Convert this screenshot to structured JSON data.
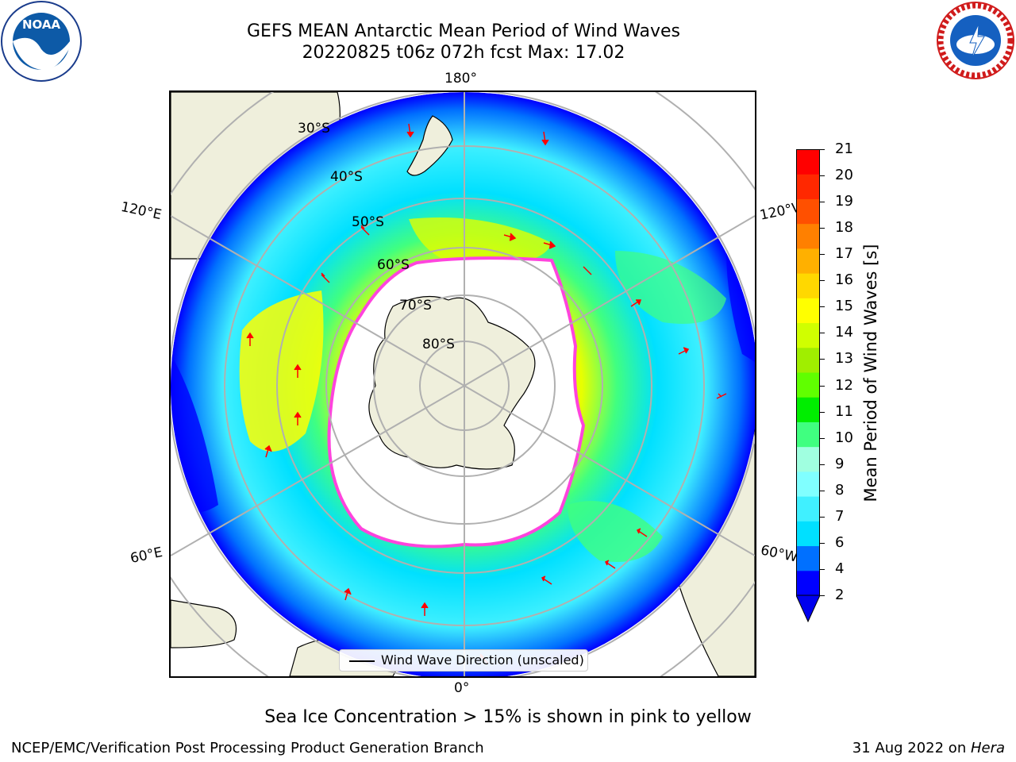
{
  "header": {
    "title": "GEFS MEAN Antarctic Mean Period of Wind Waves",
    "subtitle": "20220825 t06z 072h fcst   Max: 17.02"
  },
  "map": {
    "projection": "south-polar-stereographic",
    "longitude_labels": [
      "180°",
      "120°E",
      "120°W",
      "60°E",
      "60°W",
      "0°"
    ],
    "latitude_labels": [
      "30°S",
      "40°S",
      "50°S",
      "60°S",
      "70°S",
      "80°S"
    ],
    "legend_label": "Wind Wave Direction (unscaled)"
  },
  "colorbar": {
    "label": "Mean Period of Wind Waves [s]",
    "ticks": [
      "2",
      "4",
      "6",
      "7",
      "8",
      "9",
      "10",
      "11",
      "12",
      "13",
      "14",
      "15",
      "16",
      "17",
      "18",
      "19",
      "20",
      "21"
    ],
    "colors": [
      "#0000ff",
      "#0070ff",
      "#00e0ff",
      "#40f0ff",
      "#80ffff",
      "#a0ffe0",
      "#40ff80",
      "#00ee00",
      "#60ff00",
      "#a0ee00",
      "#d0ff00",
      "#ffff00",
      "#ffd800",
      "#ffb000",
      "#ff8000",
      "#ff5000",
      "#ff2800",
      "#ff0000"
    ],
    "under_color": "#0000ee"
  },
  "footer": {
    "note": "Sea Ice Concentration > 15% is shown in pink to yellow",
    "credit": "NCEP/EMC/Verification Post Processing Product Generation Branch",
    "date": "31 Aug 2022 on ",
    "machine": "Hera"
  },
  "logos": {
    "noaa": "NOAA",
    "nws": "NATIONAL WEATHER SERVICE"
  },
  "colors": {
    "land": "#efefdc",
    "arrow": "#ff0000",
    "sea_ice": "#ff44dd",
    "grid": "#b0b0b0"
  }
}
